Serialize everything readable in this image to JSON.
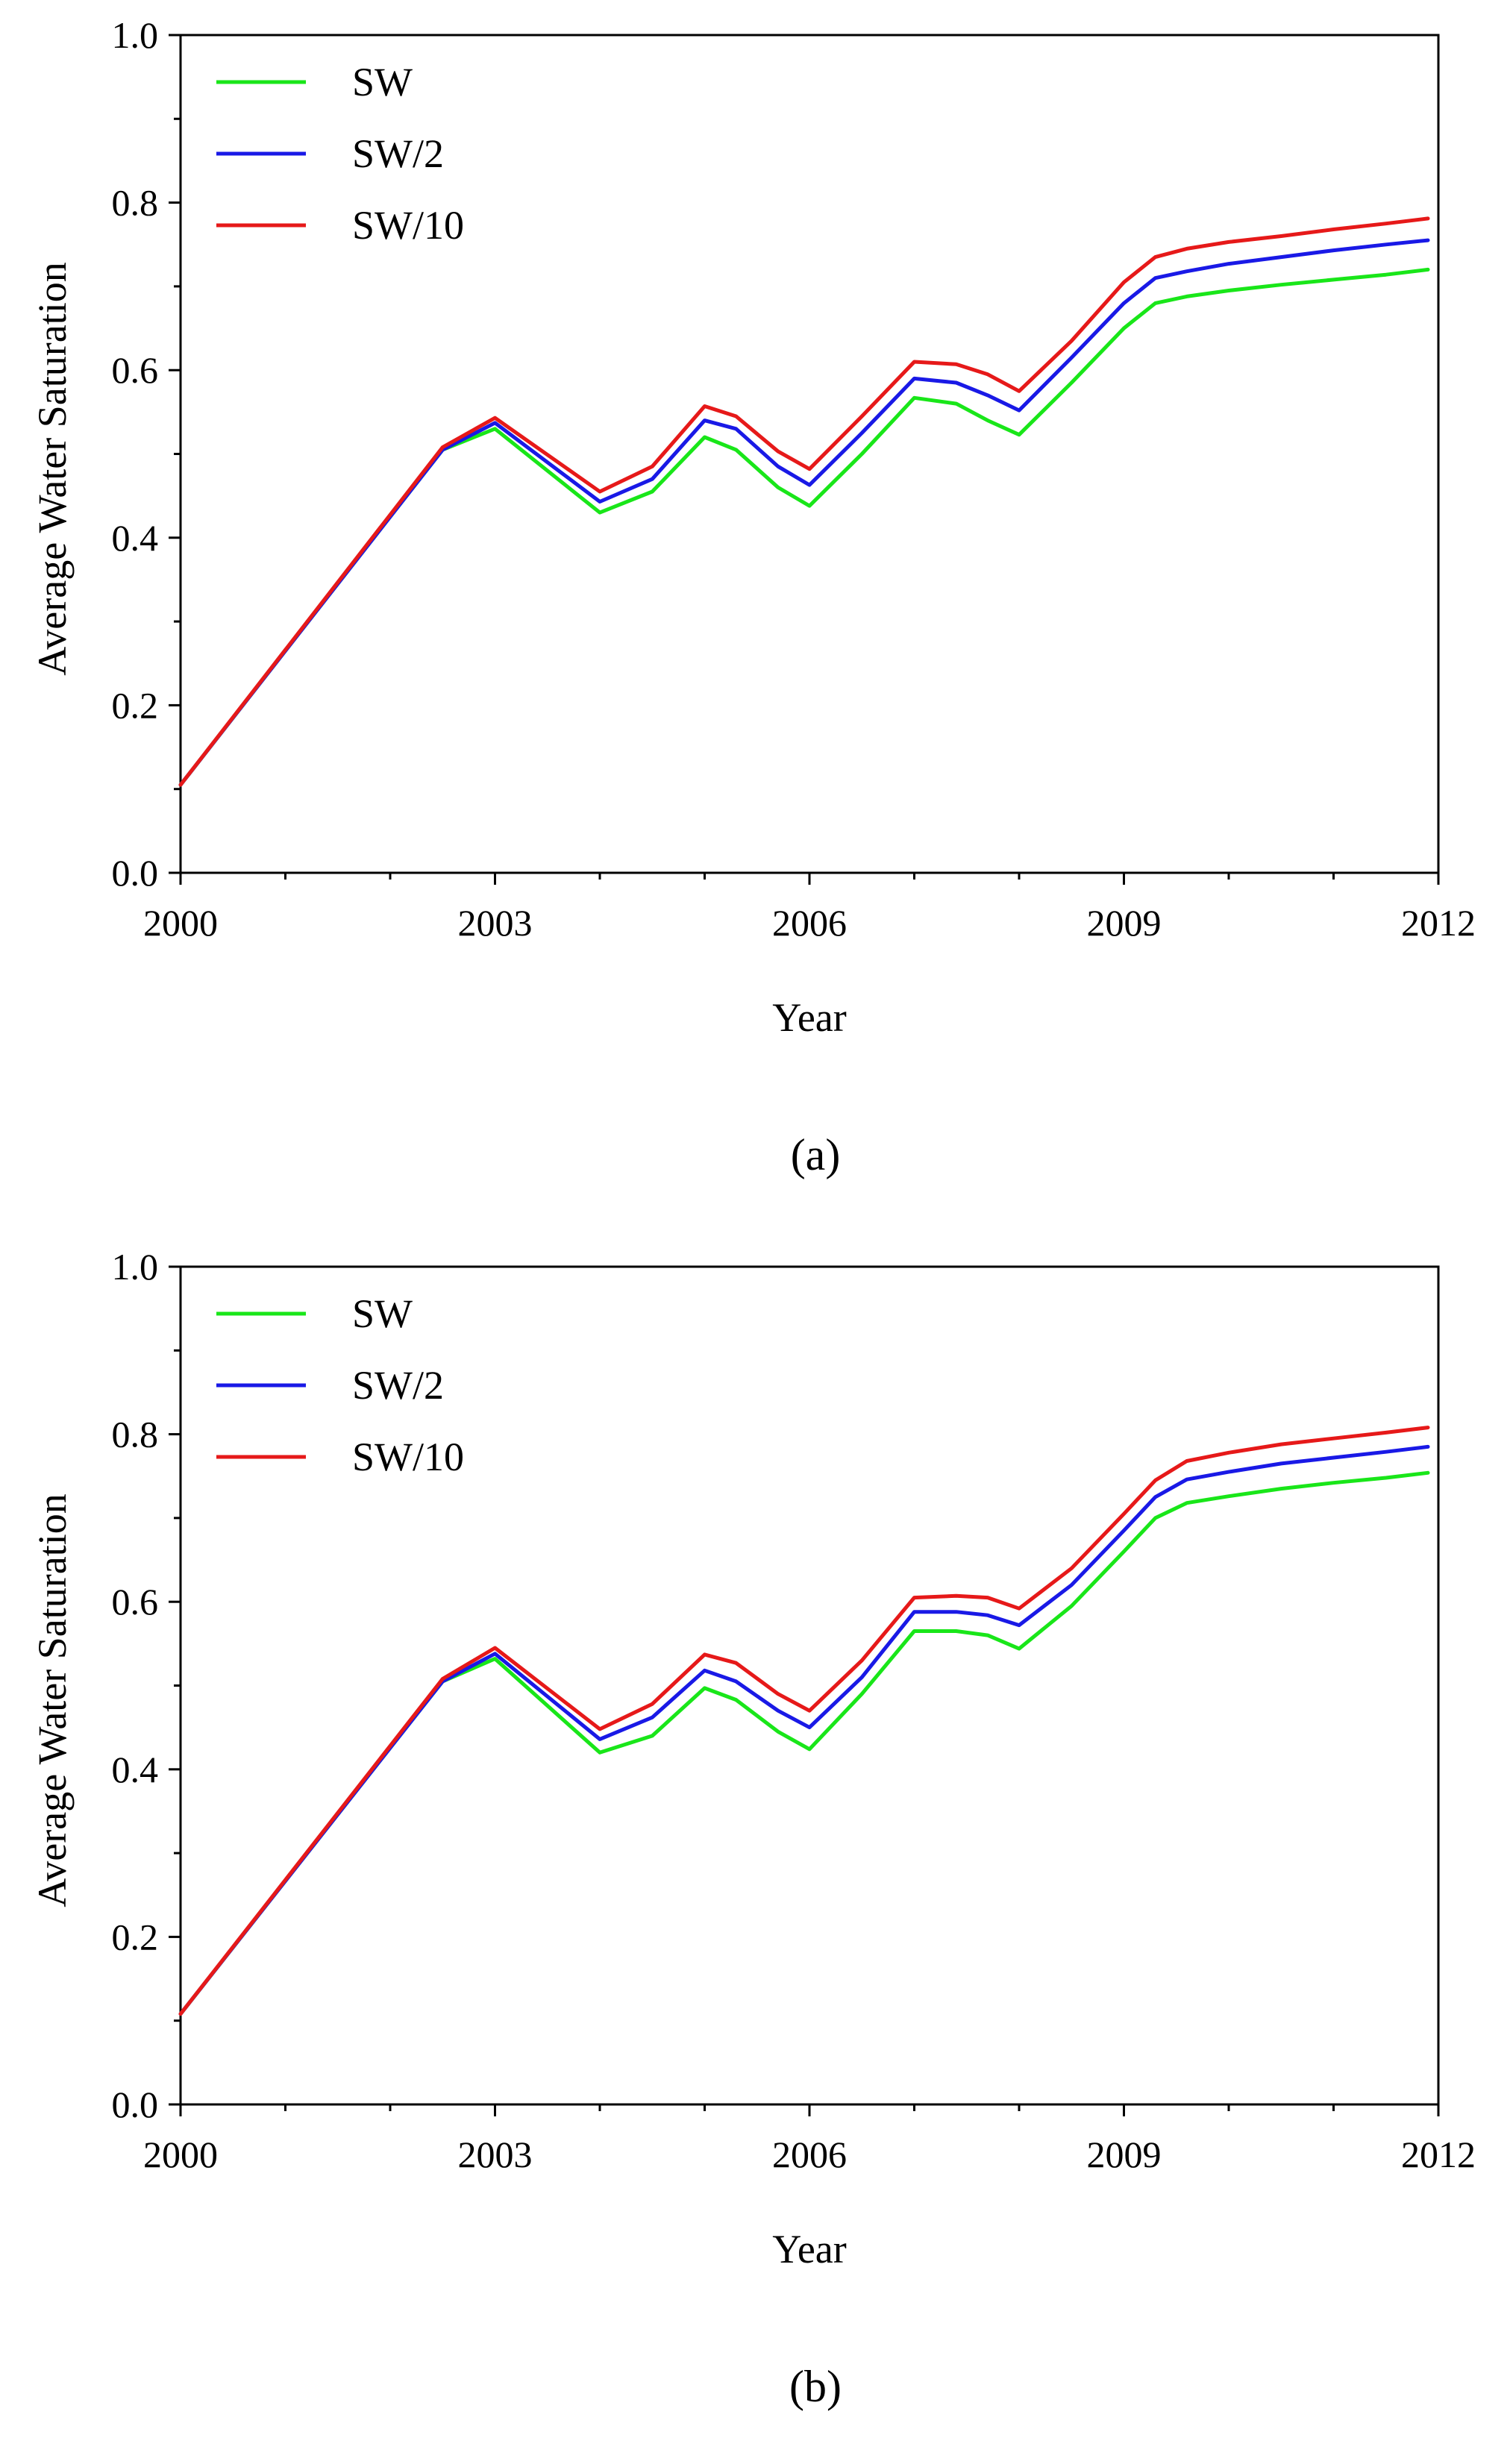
{
  "figure": {
    "panel_a_caption": "(a)",
    "panel_b_caption": "(b)"
  },
  "chart_data": [
    {
      "type": "line",
      "panel": "a",
      "caption": "(a)",
      "title": "",
      "xlabel": "Year",
      "ylabel": "Average Water Saturation",
      "xlim": [
        2000,
        2012
      ],
      "ylim": [
        0.0,
        1.0
      ],
      "xticks": [
        2000,
        2003,
        2006,
        2009,
        2012
      ],
      "xtick_labels": [
        "2000",
        "2003",
        "2006",
        "2009",
        "2012"
      ],
      "yticks": [
        0.0,
        0.2,
        0.4,
        0.6,
        0.8,
        1.0
      ],
      "ytick_labels": [
        "0.0",
        "0.2",
        "0.4",
        "0.6",
        "0.8",
        "1.0"
      ],
      "grid": false,
      "legend_position": "top-left",
      "series": [
        {
          "name": "SW",
          "color": "#19e619",
          "x": [
            2000,
            2002.5,
            2003,
            2004,
            2004.5,
            2005,
            2005.3,
            2005.7,
            2006,
            2006.5,
            2007,
            2007.4,
            2007.7,
            2008,
            2008.5,
            2009,
            2009.3,
            2009.6,
            2010,
            2010.5,
            2011,
            2011.5,
            2011.9
          ],
          "values": [
            0.105,
            0.505,
            0.53,
            0.43,
            0.455,
            0.52,
            0.505,
            0.46,
            0.438,
            0.5,
            0.567,
            0.56,
            0.54,
            0.523,
            0.585,
            0.65,
            0.68,
            0.688,
            0.695,
            0.702,
            0.708,
            0.714,
            0.72
          ]
        },
        {
          "name": "SW/2",
          "color": "#1919e6",
          "x": [
            2000,
            2002.5,
            2003,
            2004,
            2004.5,
            2005,
            2005.3,
            2005.7,
            2006,
            2006.5,
            2007,
            2007.4,
            2007.7,
            2008,
            2008.5,
            2009,
            2009.3,
            2009.6,
            2010,
            2010.5,
            2011,
            2011.5,
            2011.9
          ],
          "values": [
            0.105,
            0.505,
            0.537,
            0.443,
            0.47,
            0.54,
            0.53,
            0.485,
            0.463,
            0.525,
            0.59,
            0.585,
            0.57,
            0.552,
            0.615,
            0.68,
            0.71,
            0.718,
            0.727,
            0.735,
            0.743,
            0.75,
            0.755
          ]
        },
        {
          "name": "SW/10",
          "color": "#e61919",
          "x": [
            2000,
            2002.5,
            2003,
            2004,
            2004.5,
            2005,
            2005.3,
            2005.7,
            2006,
            2006.5,
            2007,
            2007.4,
            2007.7,
            2008,
            2008.5,
            2009,
            2009.3,
            2009.6,
            2010,
            2010.5,
            2011,
            2011.5,
            2011.9
          ],
          "values": [
            0.105,
            0.508,
            0.543,
            0.455,
            0.485,
            0.557,
            0.545,
            0.503,
            0.482,
            0.545,
            0.61,
            0.607,
            0.595,
            0.575,
            0.635,
            0.705,
            0.735,
            0.745,
            0.753,
            0.76,
            0.768,
            0.775,
            0.781
          ]
        }
      ]
    },
    {
      "type": "line",
      "panel": "b",
      "caption": "(b)",
      "title": "",
      "xlabel": "Year",
      "ylabel": "Average Water Saturation",
      "xlim": [
        2000,
        2012
      ],
      "ylim": [
        0.0,
        1.0
      ],
      "xticks": [
        2000,
        2003,
        2006,
        2009,
        2012
      ],
      "xtick_labels": [
        "2000",
        "2003",
        "2006",
        "2009",
        "2012"
      ],
      "yticks": [
        0.0,
        0.2,
        0.4,
        0.6,
        0.8,
        1.0
      ],
      "ytick_labels": [
        "0.0",
        "0.2",
        "0.4",
        "0.6",
        "0.8",
        "1.0"
      ],
      "grid": false,
      "legend_position": "top-left",
      "series": [
        {
          "name": "SW",
          "color": "#19e619",
          "x": [
            2000,
            2002.5,
            2003,
            2004,
            2004.5,
            2005,
            2005.3,
            2005.7,
            2006,
            2006.5,
            2007,
            2007.4,
            2007.7,
            2008,
            2008.5,
            2009,
            2009.3,
            2009.6,
            2010,
            2010.5,
            2011,
            2011.5,
            2011.9
          ],
          "values": [
            0.108,
            0.505,
            0.532,
            0.42,
            0.44,
            0.497,
            0.483,
            0.445,
            0.424,
            0.49,
            0.565,
            0.565,
            0.56,
            0.544,
            0.595,
            0.66,
            0.7,
            0.718,
            0.726,
            0.735,
            0.742,
            0.748,
            0.754
          ]
        },
        {
          "name": "SW/2",
          "color": "#1919e6",
          "x": [
            2000,
            2002.5,
            2003,
            2004,
            2004.5,
            2005,
            2005.3,
            2005.7,
            2006,
            2006.5,
            2007,
            2007.4,
            2007.7,
            2008,
            2008.5,
            2009,
            2009.3,
            2009.6,
            2010,
            2010.5,
            2011,
            2011.5,
            2011.9
          ],
          "values": [
            0.108,
            0.505,
            0.538,
            0.436,
            0.462,
            0.518,
            0.505,
            0.47,
            0.45,
            0.51,
            0.588,
            0.588,
            0.584,
            0.572,
            0.62,
            0.685,
            0.725,
            0.746,
            0.755,
            0.765,
            0.772,
            0.779,
            0.785
          ]
        },
        {
          "name": "SW/10",
          "color": "#e61919",
          "x": [
            2000,
            2002.5,
            2003,
            2004,
            2004.5,
            2005,
            2005.3,
            2005.7,
            2006,
            2006.5,
            2007,
            2007.4,
            2007.7,
            2008,
            2008.5,
            2009,
            2009.3,
            2009.6,
            2010,
            2010.5,
            2011,
            2011.5,
            2011.9
          ],
          "values": [
            0.108,
            0.508,
            0.545,
            0.448,
            0.478,
            0.537,
            0.527,
            0.49,
            0.47,
            0.53,
            0.605,
            0.607,
            0.605,
            0.592,
            0.64,
            0.705,
            0.745,
            0.768,
            0.778,
            0.788,
            0.795,
            0.802,
            0.808
          ]
        }
      ]
    }
  ]
}
